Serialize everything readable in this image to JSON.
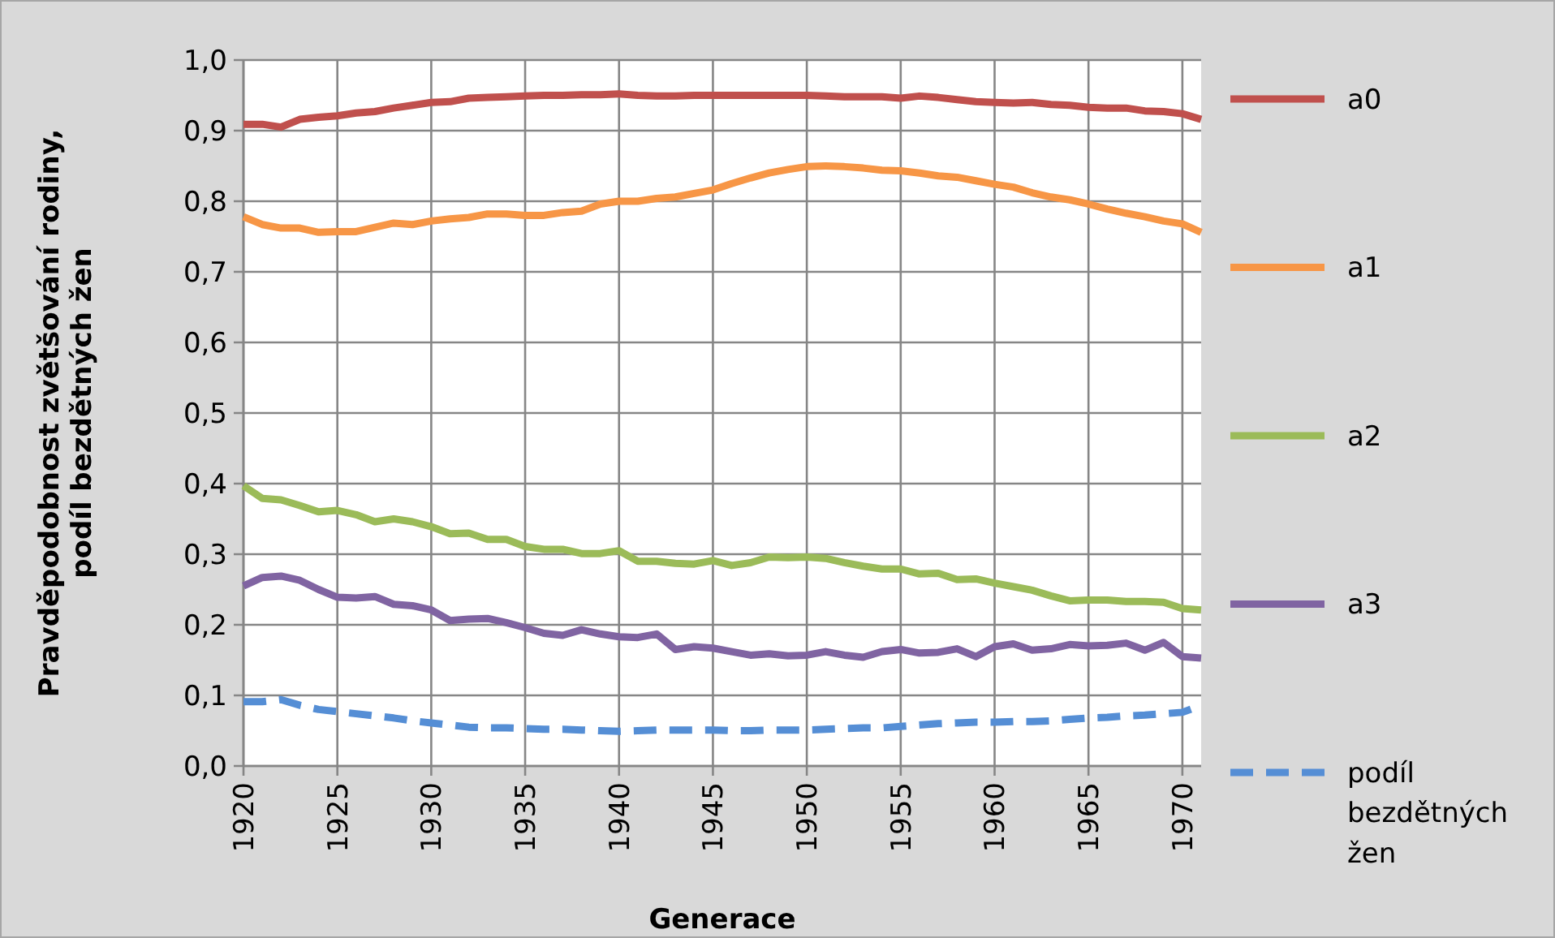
{
  "chart_data": {
    "type": "line",
    "xlabel": "Generace",
    "ylabel": "Pravděpodobnost zvětšování rodiny, podíl bezdětných žen",
    "x": [
      1920,
      1921,
      1922,
      1923,
      1924,
      1925,
      1926,
      1927,
      1928,
      1929,
      1930,
      1931,
      1932,
      1933,
      1934,
      1935,
      1936,
      1937,
      1938,
      1939,
      1940,
      1941,
      1942,
      1943,
      1944,
      1945,
      1946,
      1947,
      1948,
      1949,
      1950,
      1951,
      1952,
      1953,
      1954,
      1955,
      1956,
      1957,
      1958,
      1959,
      1960,
      1961,
      1962,
      1963,
      1964,
      1965,
      1966,
      1967,
      1968,
      1969,
      1970,
      1971
    ],
    "xlim": [
      1920,
      1971
    ],
    "xticks": [
      1920,
      1925,
      1930,
      1935,
      1940,
      1945,
      1950,
      1955,
      1960,
      1965,
      1970
    ],
    "ylim": [
      0,
      1
    ],
    "yticks": [
      {
        "value": 0,
        "label": "0,0"
      },
      {
        "value": 0.1,
        "label": "0,1"
      },
      {
        "value": 0.2,
        "label": "0,2"
      },
      {
        "value": 0.3,
        "label": "0,3"
      },
      {
        "value": 0.4,
        "label": "0,4"
      },
      {
        "value": 0.5,
        "label": "0,5"
      },
      {
        "value": 0.6,
        "label": "0,6"
      },
      {
        "value": 0.7,
        "label": "0,7"
      },
      {
        "value": 0.8,
        "label": "0,8"
      },
      {
        "value": 0.9,
        "label": "0,9"
      },
      {
        "value": 1,
        "label": "1,0"
      }
    ],
    "grid": true,
    "legend": "right",
    "series": [
      {
        "name": "a0",
        "color": "#c0504d",
        "line_style": "solid",
        "values": [
          0.909,
          0.909,
          0.905,
          0.916,
          0.919,
          0.921,
          0.925,
          0.927,
          0.932,
          0.936,
          0.94,
          0.941,
          0.946,
          0.947,
          0.948,
          0.949,
          0.95,
          0.95,
          0.951,
          0.951,
          0.952,
          0.95,
          0.949,
          0.949,
          0.95,
          0.95,
          0.95,
          0.95,
          0.95,
          0.95,
          0.95,
          0.949,
          0.948,
          0.948,
          0.948,
          0.946,
          0.949,
          0.947,
          0.944,
          0.941,
          0.94,
          0.939,
          0.94,
          0.937,
          0.936,
          0.933,
          0.932,
          0.932,
          0.928,
          0.927,
          0.924,
          0.916
        ]
      },
      {
        "name": "a1",
        "color": "#f79646",
        "line_style": "solid",
        "values": [
          0.778,
          0.767,
          0.762,
          0.762,
          0.756,
          0.757,
          0.757,
          0.763,
          0.769,
          0.767,
          0.772,
          0.775,
          0.777,
          0.782,
          0.782,
          0.78,
          0.78,
          0.784,
          0.786,
          0.796,
          0.8,
          0.8,
          0.804,
          0.806,
          0.811,
          0.816,
          0.825,
          0.833,
          0.84,
          0.845,
          0.849,
          0.85,
          0.849,
          0.847,
          0.844,
          0.843,
          0.84,
          0.836,
          0.834,
          0.829,
          0.824,
          0.82,
          0.812,
          0.806,
          0.802,
          0.796,
          0.789,
          0.783,
          0.778,
          0.772,
          0.768,
          0.756
        ]
      },
      {
        "name": "a2",
        "color": "#9bbb59",
        "line_style": "solid",
        "values": [
          0.397,
          0.379,
          0.377,
          0.369,
          0.36,
          0.362,
          0.356,
          0.346,
          0.35,
          0.346,
          0.339,
          0.329,
          0.33,
          0.321,
          0.321,
          0.311,
          0.307,
          0.307,
          0.301,
          0.301,
          0.305,
          0.29,
          0.29,
          0.287,
          0.286,
          0.291,
          0.284,
          0.288,
          0.296,
          0.295,
          0.296,
          0.294,
          0.288,
          0.283,
          0.279,
          0.279,
          0.272,
          0.273,
          0.264,
          0.265,
          0.259,
          0.254,
          0.249,
          0.241,
          0.234,
          0.235,
          0.235,
          0.233,
          0.233,
          0.232,
          0.223,
          0.221
        ]
      },
      {
        "name": "a3",
        "color": "#8064a2",
        "line_style": "solid",
        "values": [
          0.255,
          0.267,
          0.269,
          0.263,
          0.25,
          0.239,
          0.238,
          0.24,
          0.229,
          0.227,
          0.221,
          0.206,
          0.208,
          0.209,
          0.203,
          0.196,
          0.188,
          0.185,
          0.193,
          0.187,
          0.183,
          0.182,
          0.187,
          0.165,
          0.169,
          0.167,
          0.162,
          0.157,
          0.159,
          0.156,
          0.157,
          0.162,
          0.157,
          0.154,
          0.162,
          0.165,
          0.16,
          0.161,
          0.166,
          0.155,
          0.169,
          0.173,
          0.164,
          0.166,
          0.172,
          0.17,
          0.171,
          0.174,
          0.164,
          0.175,
          0.155,
          0.153
        ]
      },
      {
        "name": "podíl bezdětných žen",
        "color": "#558ed5",
        "line_style": "dashed",
        "values": [
          0.091,
          0.091,
          0.094,
          0.086,
          0.08,
          0.077,
          0.074,
          0.071,
          0.068,
          0.064,
          0.061,
          0.058,
          0.055,
          0.054,
          0.054,
          0.053,
          0.052,
          0.052,
          0.051,
          0.05,
          0.049,
          0.05,
          0.051,
          0.051,
          0.051,
          0.051,
          0.05,
          0.05,
          0.051,
          0.051,
          0.051,
          0.052,
          0.053,
          0.054,
          0.054,
          0.056,
          0.058,
          0.06,
          0.061,
          0.062,
          0.062,
          0.063,
          0.063,
          0.064,
          0.066,
          0.068,
          0.069,
          0.071,
          0.072,
          0.074,
          0.076,
          0.086
        ]
      }
    ]
  }
}
